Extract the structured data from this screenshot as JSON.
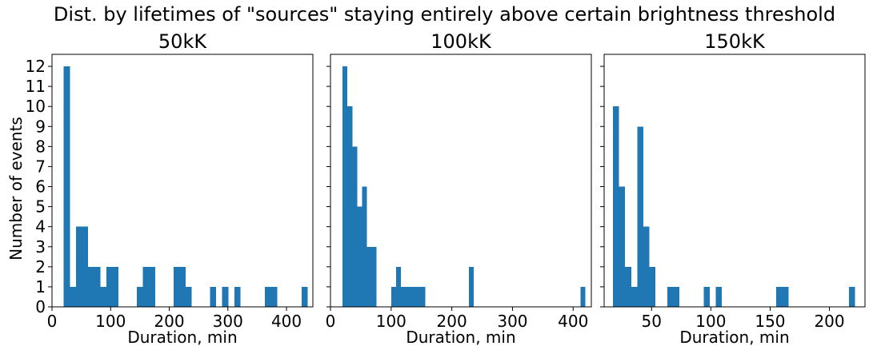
{
  "figure": {
    "title": "Dist. by lifetimes of \"sources\" staying entirely above certain brightness threshold",
    "ylabel": "Number of events",
    "bar_color": "#1f77b4",
    "shared_y": true
  },
  "chart_data": [
    {
      "type": "bar",
      "title": "50kK",
      "xlabel": "Duration, min",
      "ylabel": "Number of events",
      "xlim": [
        0,
        445
      ],
      "ylim": [
        0,
        12.6
      ],
      "xticks": [
        0,
        100,
        200,
        300,
        400
      ],
      "yticks": [
        0,
        1,
        2,
        3,
        4,
        5,
        6,
        7,
        8,
        9,
        10,
        11,
        12
      ],
      "bin_width": 10.4,
      "bin_starts": [
        20,
        30.4,
        40.8,
        51.2,
        61.6,
        72,
        82.4,
        92.8,
        103.2,
        144.8,
        155.2,
        165.6,
        207.2,
        217.6,
        228,
        269.6,
        290.4,
        311.2,
        363.2,
        373.6,
        425.6
      ],
      "values": [
        12,
        1,
        4,
        4,
        2,
        2,
        1,
        2,
        2,
        1,
        2,
        2,
        2,
        2,
        1,
        1,
        1,
        1,
        1,
        1,
        1
      ]
    },
    {
      "type": "bar",
      "title": "100kK",
      "xlabel": "Duration, min",
      "xlim": [
        0,
        430
      ],
      "ylim": [
        0,
        12.6
      ],
      "xticks": [
        0,
        100,
        200,
        300,
        400
      ],
      "bin_width": 8,
      "bin_starts": [
        20,
        28,
        36,
        44,
        52,
        60,
        68,
        76,
        100,
        108,
        116,
        124,
        132,
        140,
        148,
        228,
        412
      ],
      "values": [
        12,
        10,
        8,
        5,
        6,
        3,
        3,
        0,
        1,
        2,
        1,
        1,
        1,
        1,
        1,
        2,
        1
      ]
    },
    {
      "type": "bar",
      "title": "150kK",
      "xlabel": "Duration, min",
      "xlim": [
        10,
        230
      ],
      "ylim": [
        0,
        12.6
      ],
      "xticks": [
        50,
        100,
        150,
        200
      ],
      "bin_width": 5.1,
      "bin_starts": [
        17.5,
        22.6,
        27.7,
        32.8,
        37.9,
        43,
        48.1,
        63.4,
        68.5,
        94,
        104.2,
        155.2,
        160.3,
        216.4
      ],
      "values": [
        10,
        6,
        2,
        1,
        9,
        4,
        2,
        1,
        1,
        1,
        1,
        1,
        1,
        1
      ]
    }
  ]
}
